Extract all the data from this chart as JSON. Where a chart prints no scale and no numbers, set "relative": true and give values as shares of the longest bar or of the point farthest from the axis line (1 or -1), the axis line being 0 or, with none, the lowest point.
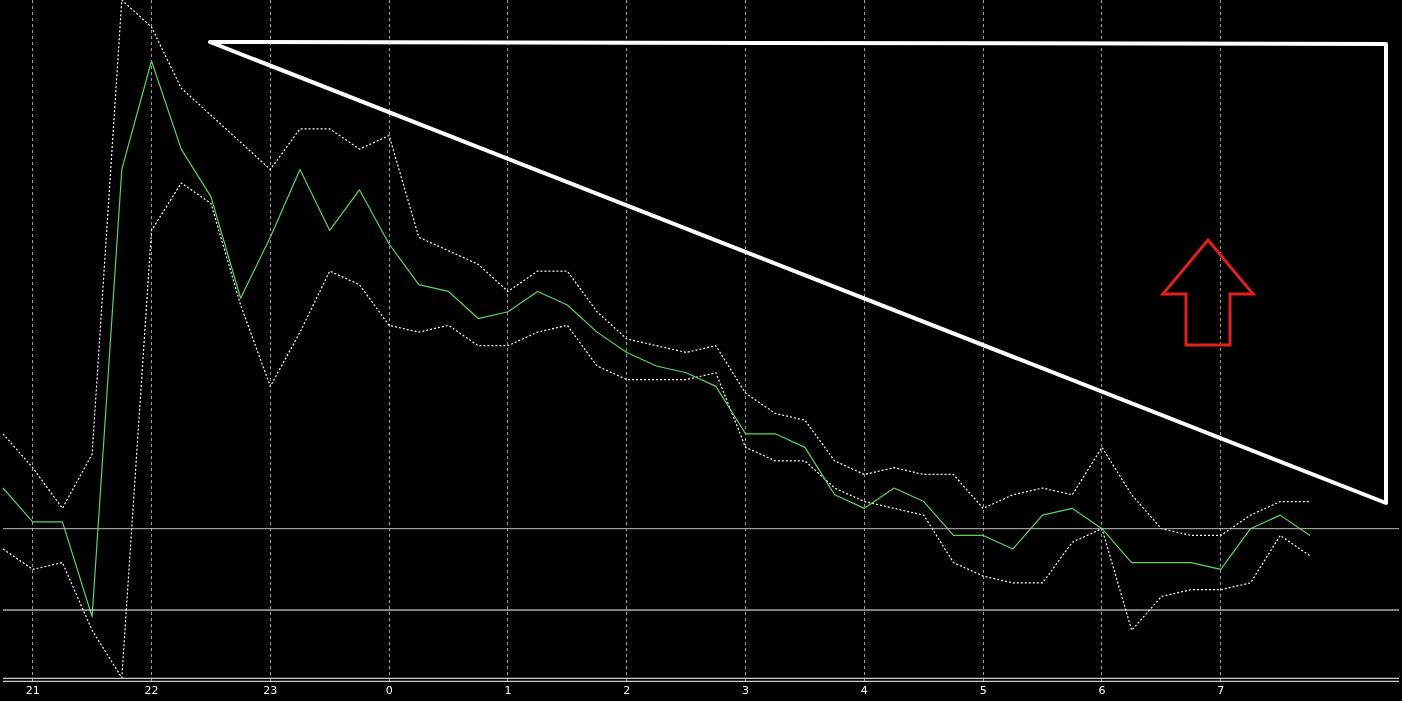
{
  "chart_data": {
    "type": "line",
    "relative": true,
    "grid": "x",
    "legend": false,
    "marker": "none",
    "categories": [
      null,
      "21",
      null,
      null,
      null,
      "22",
      null,
      null,
      null,
      "23",
      null,
      null,
      null,
      "0",
      null,
      null,
      null,
      "1",
      null,
      null,
      null,
      "2",
      null,
      null,
      null,
      "3",
      null,
      null,
      null,
      "4",
      null,
      null,
      null,
      "5",
      null,
      null,
      null,
      "6",
      null,
      null,
      null,
      "7",
      null,
      null,
      null,
      null,
      null,
      null
    ],
    "series": [
      {
        "color": "#5fd35f",
        "line_style": "solid",
        "values": [
          0.28,
          0.23,
          0.23,
          0.09,
          0.75,
          0.91,
          0.78,
          0.71,
          0.56,
          0.65,
          0.75,
          0.66,
          0.72,
          0.64,
          0.58,
          0.57,
          0.53,
          0.54,
          0.57,
          0.55,
          0.51,
          0.48,
          0.46,
          0.45,
          0.43,
          0.36,
          0.36,
          0.34,
          0.27,
          0.25,
          0.28,
          0.26,
          0.21,
          0.21,
          0.19,
          0.24,
          0.25,
          0.22,
          0.17,
          0.17,
          0.17,
          0.16,
          0.22,
          0.24,
          0.21,
          null,
          null,
          null
        ]
      },
      {
        "color": "#ffffff",
        "line_style": "dotted",
        "values": [
          0.36,
          0.31,
          0.25,
          0.33,
          1,
          0.96,
          0.87,
          0.83,
          0.79,
          0.75,
          0.81,
          0.81,
          0.78,
          0.8,
          0.65,
          0.63,
          0.61,
          0.57,
          0.6,
          0.6,
          0.54,
          0.5,
          0.49,
          0.48,
          0.49,
          0.42,
          0.39,
          0.38,
          0.32,
          0.3,
          0.31,
          0.3,
          0.3,
          0.25,
          0.27,
          0.28,
          0.27,
          0.34,
          0.27,
          0.22,
          0.21,
          0.21,
          0.24,
          0.26,
          0.26,
          null,
          null,
          null
        ]
      },
      {
        "color": "#ffffff",
        "line_style": "dotted",
        "values": [
          0.19,
          0.16,
          0.17,
          0.07,
          0,
          0.66,
          0.73,
          0.7,
          0.55,
          0.43,
          0.51,
          0.6,
          0.58,
          0.52,
          0.51,
          0.52,
          0.49,
          0.49,
          0.51,
          0.52,
          0.46,
          0.44,
          0.44,
          0.44,
          0.45,
          0.34,
          0.32,
          0.32,
          0.28,
          0.26,
          0.25,
          0.24,
          0.17,
          0.15,
          0.14,
          0.14,
          0.2,
          0.22,
          0.07,
          0.12,
          0.13,
          0.13,
          0.14,
          0.21,
          0.18,
          null,
          null,
          null
        ]
      }
    ],
    "ref_lines": [
      {
        "axis": "y",
        "value": 0.22,
        "color": "#bdbdbd"
      },
      {
        "axis": "y",
        "value": 0.1,
        "color": "#ffffff"
      }
    ]
  }
}
